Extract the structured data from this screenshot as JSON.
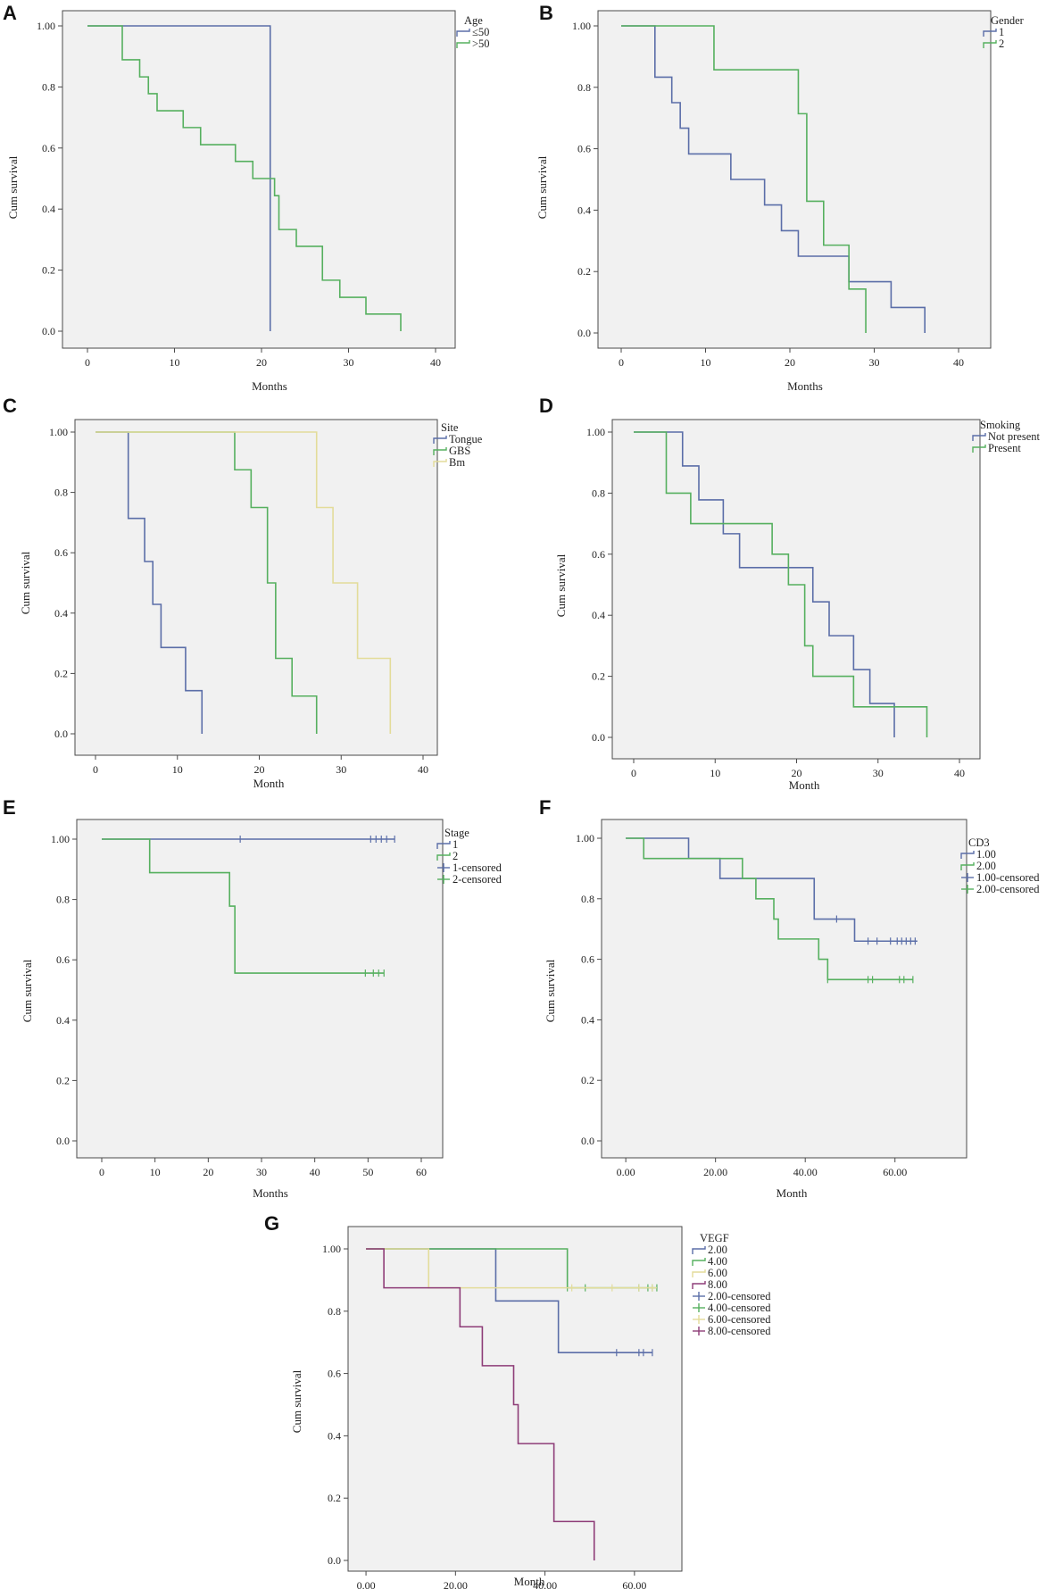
{
  "colors": {
    "c1": "#5b6ea8",
    "c2": "#56b05f",
    "c3": "#e3dc9a",
    "c4": "#8e3d78"
  },
  "chart_data": [
    {
      "letter": "A",
      "type": "line",
      "xlabel": "Months",
      "ylabel": "Cum survival",
      "xlim": [
        0,
        40
      ],
      "xticks": [
        "0",
        "10",
        "20",
        "30",
        "40"
      ],
      "ylim": [
        0,
        1
      ],
      "yticks": [
        "0.0",
        "0.2",
        "0.4",
        "0.6",
        "0.8",
        "1.00"
      ],
      "legend_title": "Age",
      "legend": [
        "≤50",
        ">50"
      ],
      "series": [
        {
          "name": "≤50",
          "color": "c1",
          "steps": [
            [
              0,
              1.0
            ],
            [
              21,
              0.0
            ]
          ],
          "censored": []
        },
        {
          "name": ">50",
          "color": "c2",
          "steps": [
            [
              0,
              1.0
            ],
            [
              4,
              0.889
            ],
            [
              6,
              0.833
            ],
            [
              7,
              0.778
            ],
            [
              8,
              0.722
            ],
            [
              11,
              0.667
            ],
            [
              13,
              0.611
            ],
            [
              17,
              0.556
            ],
            [
              19,
              0.5
            ],
            [
              21.5,
              0.444
            ],
            [
              22,
              0.333
            ],
            [
              24,
              0.278
            ],
            [
              27,
              0.167
            ],
            [
              29,
              0.111
            ],
            [
              32,
              0.056
            ],
            [
              36,
              0.0
            ]
          ],
          "censored": []
        }
      ]
    },
    {
      "letter": "B",
      "type": "line",
      "xlabel": "Months",
      "ylabel": "Cum survival",
      "xlim": [
        0,
        40
      ],
      "xticks": [
        "0",
        "10",
        "20",
        "30",
        "40"
      ],
      "ylim": [
        0,
        1
      ],
      "yticks": [
        "0.0",
        "0.2",
        "0.4",
        "0.6",
        "0.8",
        "1.00"
      ],
      "legend_title": "Gender",
      "legend": [
        "1",
        "2"
      ],
      "series": [
        {
          "name": "1",
          "color": "c1",
          "steps": [
            [
              0,
              1.0
            ],
            [
              4,
              0.833
            ],
            [
              6,
              0.75
            ],
            [
              7,
              0.667
            ],
            [
              8,
              0.583
            ],
            [
              13,
              0.5
            ],
            [
              17,
              0.417
            ],
            [
              19,
              0.333
            ],
            [
              21,
              0.25
            ],
            [
              27,
              0.167
            ],
            [
              32,
              0.083
            ],
            [
              36,
              0.0
            ]
          ],
          "censored": []
        },
        {
          "name": "2",
          "color": "c2",
          "steps": [
            [
              0,
              1.0
            ],
            [
              11,
              0.857
            ],
            [
              21,
              0.714
            ],
            [
              22,
              0.429
            ],
            [
              24,
              0.286
            ],
            [
              27,
              0.143
            ],
            [
              29,
              0.0
            ]
          ],
          "censored": []
        }
      ]
    },
    {
      "letter": "C",
      "type": "line",
      "xlabel": "Month",
      "ylabel": "Cum survival",
      "xlim": [
        0,
        40
      ],
      "xticks": [
        "0",
        "10",
        "20",
        "30",
        "40"
      ],
      "ylim": [
        0,
        1
      ],
      "yticks": [
        "0.0",
        "0.2",
        "0.4",
        "0.6",
        "0.8",
        "1.00"
      ],
      "legend_title": "Site",
      "legend": [
        "Tongue",
        "GBS",
        "Bm"
      ],
      "series": [
        {
          "name": "Tongue",
          "color": "c1",
          "steps": [
            [
              0,
              1.0
            ],
            [
              4,
              0.714
            ],
            [
              6,
              0.571
            ],
            [
              7,
              0.429
            ],
            [
              8,
              0.286
            ],
            [
              11,
              0.143
            ],
            [
              13,
              0.0
            ]
          ],
          "censored": []
        },
        {
          "name": "GBS",
          "color": "c2",
          "steps": [
            [
              0,
              1.0
            ],
            [
              17,
              0.875
            ],
            [
              19,
              0.75
            ],
            [
              21,
              0.5
            ],
            [
              22,
              0.25
            ],
            [
              24,
              0.125
            ],
            [
              27,
              0.0
            ]
          ],
          "censored": []
        },
        {
          "name": "Bm",
          "color": "c3",
          "steps": [
            [
              0,
              1.0
            ],
            [
              27,
              0.75
            ],
            [
              29,
              0.5
            ],
            [
              32,
              0.25
            ],
            [
              36,
              0.0
            ]
          ],
          "censored": []
        }
      ]
    },
    {
      "letter": "D",
      "type": "line",
      "xlabel": "Month",
      "ylabel": "Cum survival",
      "xlim": [
        0,
        40
      ],
      "xticks": [
        "0",
        "10",
        "20",
        "30",
        "40"
      ],
      "ylim": [
        0,
        1
      ],
      "yticks": [
        "0.0",
        "0.2",
        "0.4",
        "0.6",
        "0.8",
        "1.00"
      ],
      "legend_title": "Smoking",
      "legend": [
        "Not present",
        "Present"
      ],
      "series": [
        {
          "name": "Not present",
          "color": "c1",
          "steps": [
            [
              0,
              1.0
            ],
            [
              6,
              0.889
            ],
            [
              8,
              0.778
            ],
            [
              11,
              0.667
            ],
            [
              13,
              0.556
            ],
            [
              22,
              0.444
            ],
            [
              24,
              0.333
            ],
            [
              27,
              0.222
            ],
            [
              29,
              0.111
            ],
            [
              32,
              0.0
            ]
          ],
          "censored": []
        },
        {
          "name": "Present",
          "color": "c2",
          "steps": [
            [
              0,
              1.0
            ],
            [
              4,
              0.8
            ],
            [
              7,
              0.7
            ],
            [
              17,
              0.6
            ],
            [
              19,
              0.5
            ],
            [
              21,
              0.3
            ],
            [
              22,
              0.2
            ],
            [
              27,
              0.1
            ],
            [
              36,
              0.0
            ]
          ],
          "censored": []
        }
      ]
    },
    {
      "letter": "E",
      "type": "line",
      "xlabel": "Months",
      "ylabel": "Cum survival",
      "xlim": [
        0,
        60
      ],
      "xticks": [
        "0",
        "10",
        "20",
        "30",
        "40",
        "50",
        "60"
      ],
      "ylim": [
        0,
        1
      ],
      "yticks": [
        "0.0",
        "0.2",
        "0.4",
        "0.6",
        "0.8",
        "1.00"
      ],
      "legend_title": "Stage",
      "legend": [
        "1",
        "2",
        "1-censored",
        "2-censored"
      ],
      "series": [
        {
          "name": "1",
          "color": "c1",
          "steps": [
            [
              0,
              1.0
            ],
            [
              55,
              1.0
            ]
          ],
          "censored": [
            [
              26,
              1.0
            ],
            [
              50.5,
              1.0
            ],
            [
              51.5,
              1.0
            ],
            [
              52.5,
              1.0
            ],
            [
              53.5,
              1.0
            ],
            [
              55,
              1.0
            ]
          ]
        },
        {
          "name": "2",
          "color": "c2",
          "steps": [
            [
              0,
              1.0
            ],
            [
              9,
              0.889
            ],
            [
              24,
              0.778
            ],
            [
              25,
              0.556
            ],
            [
              53,
              0.556
            ]
          ],
          "censored": [
            [
              49.5,
              0.556
            ],
            [
              51,
              0.556
            ],
            [
              52,
              0.556
            ],
            [
              53,
              0.556
            ]
          ]
        }
      ]
    },
    {
      "letter": "F",
      "type": "line",
      "xlabel": "Month",
      "ylabel": "Cum survival",
      "xlim": [
        -5,
        70
      ],
      "xticks": [
        "0.00",
        "20.00",
        "40.00",
        "60.00"
      ],
      "ylim": [
        0,
        1
      ],
      "yticks": [
        "0.0",
        "0.2",
        "0.4",
        "0.6",
        "0.8",
        "1.00"
      ],
      "legend_title": "CD3",
      "legend": [
        "1.00",
        "2.00",
        "1.00-censored",
        "2.00-censored"
      ],
      "series": [
        {
          "name": "1.00",
          "color": "c1",
          "steps": [
            [
              0,
              1.0
            ],
            [
              14,
              0.933
            ],
            [
              21,
              0.867
            ],
            [
              42,
              0.733
            ],
            [
              51,
              0.66
            ],
            [
              65,
              0.66
            ]
          ],
          "censored": [
            [
              47,
              0.733
            ],
            [
              54,
              0.66
            ],
            [
              56,
              0.66
            ],
            [
              59,
              0.66
            ],
            [
              60.5,
              0.66
            ],
            [
              61.5,
              0.66
            ],
            [
              62.5,
              0.66
            ],
            [
              63.5,
              0.66
            ],
            [
              64.5,
              0.66
            ]
          ]
        },
        {
          "name": "2.00",
          "color": "c2",
          "steps": [
            [
              0,
              1.0
            ],
            [
              4,
              0.933
            ],
            [
              26,
              0.867
            ],
            [
              29,
              0.8
            ],
            [
              33,
              0.733
            ],
            [
              34,
              0.667
            ],
            [
              43,
              0.6
            ],
            [
              45,
              0.533
            ],
            [
              64,
              0.533
            ]
          ],
          "censored": [
            [
              45,
              0.533
            ],
            [
              54,
              0.533
            ],
            [
              55,
              0.533
            ],
            [
              61,
              0.533
            ],
            [
              62,
              0.533
            ],
            [
              64,
              0.533
            ]
          ]
        }
      ]
    },
    {
      "letter": "G",
      "type": "line",
      "xlabel": "Month",
      "ylabel": "Cum survival",
      "xlim": [
        -5,
        70
      ],
      "xticks": [
        "0.00",
        "20.00",
        "40.00",
        "60.00"
      ],
      "ylim": [
        0,
        1
      ],
      "yticks": [
        "0.0",
        "0.2",
        "0.4",
        "0.6",
        "0.8",
        "1.00"
      ],
      "legend_title": "VEGF",
      "legend": [
        "2.00",
        "4.00",
        "6.00",
        "8.00",
        "2.00-censored",
        "4.00-censored",
        "6.00-censored",
        "8.00-censored"
      ],
      "series": [
        {
          "name": "2.00",
          "color": "c1",
          "steps": [
            [
              0,
              1.0
            ],
            [
              29,
              0.833
            ],
            [
              43,
              0.667
            ],
            [
              64,
              0.667
            ]
          ],
          "censored": [
            [
              56,
              0.667
            ],
            [
              61,
              0.667
            ],
            [
              62,
              0.667
            ],
            [
              64,
              0.667
            ]
          ]
        },
        {
          "name": "4.00",
          "color": "c2",
          "steps": [
            [
              0,
              1.0
            ],
            [
              45,
              0.875
            ],
            [
              65,
              0.875
            ]
          ],
          "censored": [
            [
              45,
              0.875
            ],
            [
              49,
              0.875
            ],
            [
              61,
              0.875
            ],
            [
              63,
              0.875
            ],
            [
              64,
              0.875
            ],
            [
              65,
              0.875
            ]
          ]
        },
        {
          "name": "6.00",
          "color": "c3",
          "steps": [
            [
              0,
              1.0
            ],
            [
              14,
              0.875
            ],
            [
              65,
              0.875
            ]
          ],
          "censored": [
            [
              46,
              0.875
            ],
            [
              55,
              0.875
            ],
            [
              61,
              0.875
            ],
            [
              64,
              0.875
            ]
          ]
        },
        {
          "name": "8.00",
          "color": "c4",
          "steps": [
            [
              0,
              1.0
            ],
            [
              4,
              0.875
            ],
            [
              21,
              0.75
            ],
            [
              26,
              0.625
            ],
            [
              33,
              0.5
            ],
            [
              34,
              0.375
            ],
            [
              42,
              0.125
            ],
            [
              51,
              0.0
            ]
          ],
          "censored": []
        }
      ]
    }
  ]
}
